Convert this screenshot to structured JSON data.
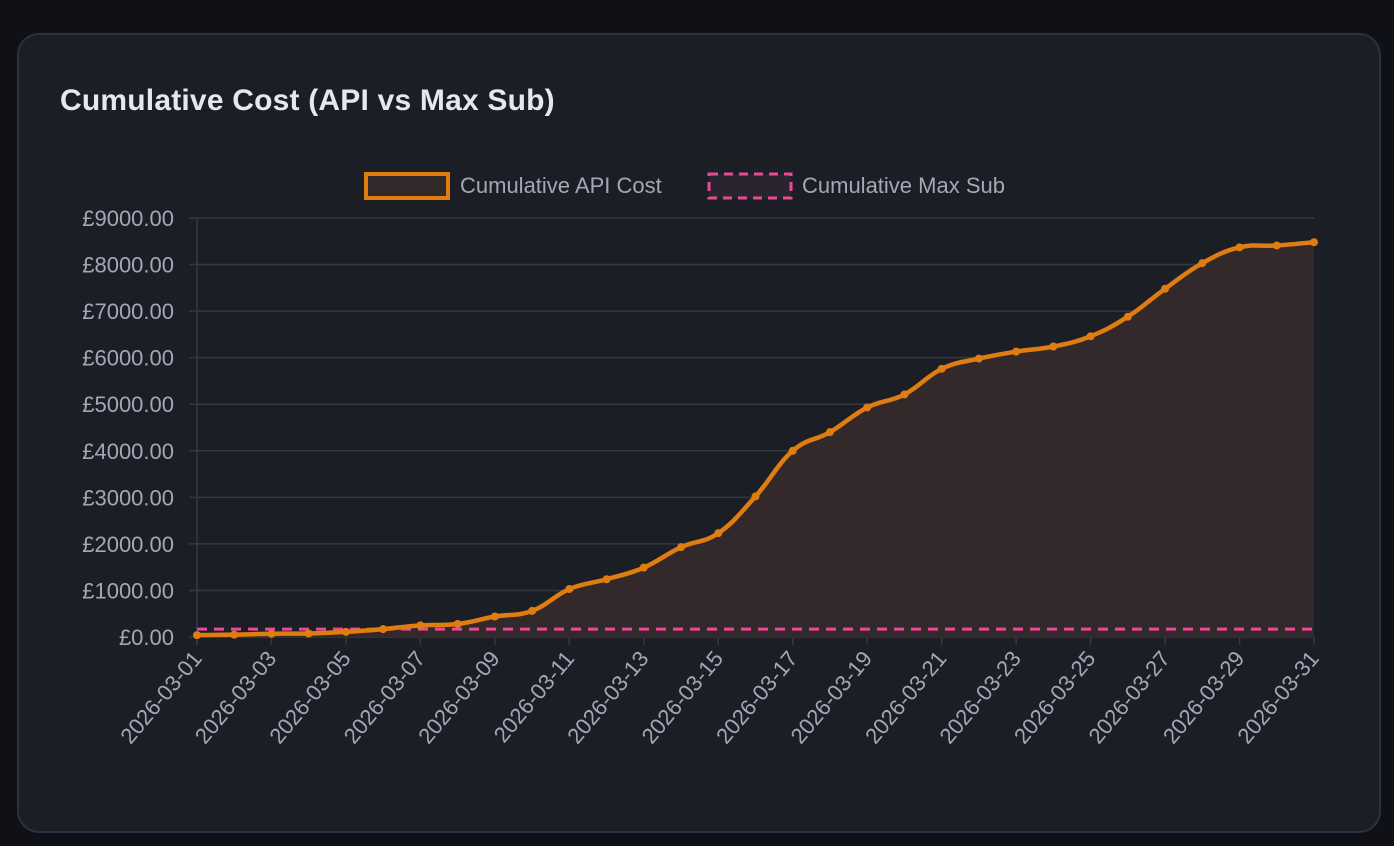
{
  "card": {
    "title": "Cumulative Cost (API vs Max Sub)"
  },
  "colors": {
    "page_bg": "#0f1117",
    "card_bg": "#1c1e26",
    "card_border": "#2d3040",
    "grid": "#343846",
    "tick_text": "#a3a7b8",
    "api_line": "#e07d10",
    "api_fill": "#33292a",
    "max_line": "#ec4899"
  },
  "chart_data": {
    "type": "area",
    "title": "",
    "xlabel": "",
    "ylabel": "",
    "legend_position": "top-center",
    "grid": true,
    "ylim": [
      0,
      9000
    ],
    "y_ticks": [
      "£0.00",
      "£1000.00",
      "£2000.00",
      "£3000.00",
      "£4000.00",
      "£5000.00",
      "£6000.00",
      "£7000.00",
      "£8000.00",
      "£9000.00"
    ],
    "x_tick_labels": [
      "2026-03-01",
      "2026-03-03",
      "2026-03-05",
      "2026-03-07",
      "2026-03-09",
      "2026-03-11",
      "2026-03-13",
      "2026-03-15",
      "2026-03-17",
      "2026-03-19",
      "2026-03-21",
      "2026-03-23",
      "2026-03-25",
      "2026-03-27",
      "2026-03-29",
      "2026-03-31"
    ],
    "x": [
      "2026-03-01",
      "2026-03-02",
      "2026-03-03",
      "2026-03-04",
      "2026-03-05",
      "2026-03-06",
      "2026-03-07",
      "2026-03-08",
      "2026-03-09",
      "2026-03-10",
      "2026-03-11",
      "2026-03-12",
      "2026-03-13",
      "2026-03-14",
      "2026-03-15",
      "2026-03-16",
      "2026-03-17",
      "2026-03-18",
      "2026-03-19",
      "2026-03-20",
      "2026-03-21",
      "2026-03-22",
      "2026-03-23",
      "2026-03-24",
      "2026-03-25",
      "2026-03-26",
      "2026-03-27",
      "2026-03-28",
      "2026-03-29",
      "2026-03-30",
      "2026-03-31"
    ],
    "series": [
      {
        "name": "Cumulative API Cost",
        "style": "filled-line",
        "values": [
          40,
          50,
          70,
          75,
          110,
          170,
          250,
          280,
          440,
          560,
          1030,
          1240,
          1490,
          1930,
          2230,
          3020,
          4000,
          4400,
          4930,
          5210,
          5760,
          5980,
          6130,
          6240,
          6460,
          6880,
          7480,
          8030,
          8370,
          8410,
          8480
        ]
      },
      {
        "name": "Cumulative Max Sub",
        "style": "dashed-line",
        "values": [
          170,
          170,
          170,
          170,
          170,
          170,
          170,
          170,
          170,
          170,
          170,
          170,
          170,
          170,
          170,
          170,
          170,
          170,
          170,
          170,
          170,
          170,
          170,
          170,
          170,
          170,
          170,
          170,
          170,
          170,
          170
        ]
      }
    ]
  }
}
